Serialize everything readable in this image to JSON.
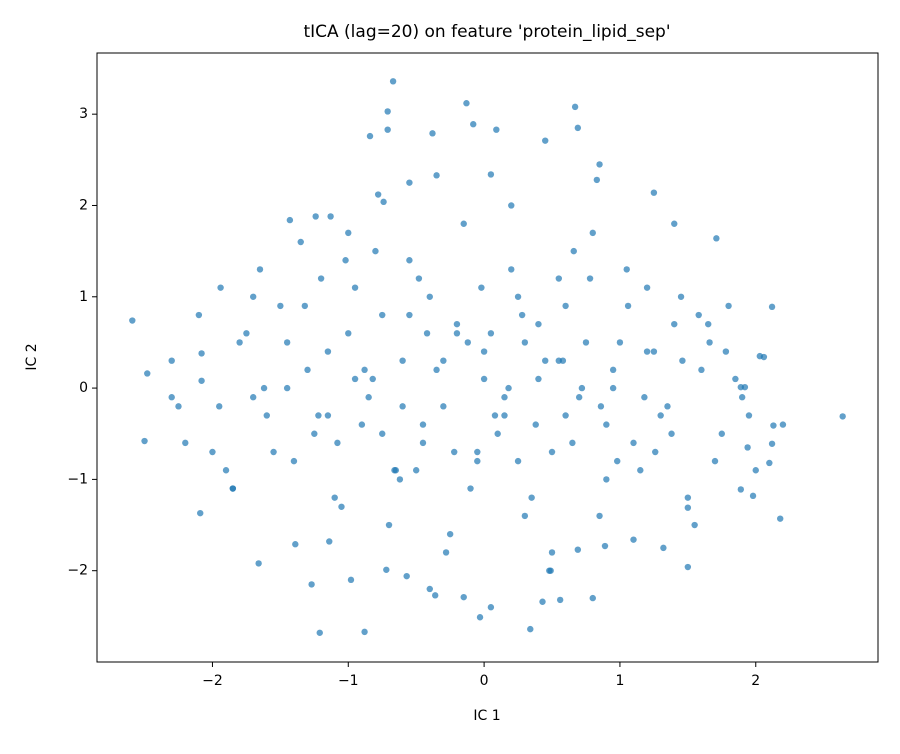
{
  "chart_data": {
    "type": "scatter",
    "title": "tICA (lag=20) on feature 'protein_lipid_sep'",
    "x_label": "IC 1",
    "y_label": "IC 2",
    "xlim": [
      -2.85,
      2.9
    ],
    "ylim": [
      -3.0,
      3.67
    ],
    "xticks": [
      {
        "value": -2,
        "label": "−2"
      },
      {
        "value": -1,
        "label": "−1"
      },
      0,
      1,
      2
    ],
    "yticks": [
      {
        "value": -2,
        "label": "−2"
      },
      {
        "value": -1,
        "label": "−1"
      },
      0,
      1,
      2,
      3
    ],
    "grid": false,
    "series": [
      {
        "color": "#1f77b4",
        "x": [
          -2.59,
          -2.5,
          2.64,
          2.18,
          2.12,
          -0.67,
          -0.13,
          0.67,
          0.69,
          0.45,
          -0.08,
          0.09,
          -0.71,
          -0.84,
          -0.71,
          -0.38,
          0.85,
          -1.21,
          -0.88,
          0.34,
          -0.03,
          0.05,
          -0.15,
          0.43,
          0.56,
          -0.36,
          -1.27,
          -0.98,
          -1.66,
          1.5,
          1.71,
          1.25,
          0.83,
          0.05,
          -0.35,
          -0.55,
          -0.78,
          -0.74,
          -1.24,
          -1.13,
          -1.43,
          -1.94,
          -2.48,
          -2.08,
          -2.08,
          2.03,
          2.06,
          1.92,
          1.89,
          2.13,
          2.12,
          1.94,
          2.1,
          1.89,
          1.98,
          1.5,
          -2.09,
          -1.85,
          -1.39,
          -1.14,
          -0.57,
          -0.72,
          0.49,
          0.5,
          1.32,
          1.1,
          0.89,
          0.69,
          -1.8,
          -1.6,
          -1.5,
          -1.4,
          -1.3,
          -1.2,
          -1.1,
          -1.0,
          -0.9,
          -0.8,
          -0.7,
          -0.6,
          -0.5,
          -0.4,
          -0.3,
          -0.2,
          -0.1,
          0.0,
          0.1,
          0.2,
          0.3,
          0.4,
          0.5,
          0.6,
          0.7,
          0.8,
          0.9,
          1.0,
          1.1,
          1.2,
          1.3,
          1.4,
          1.5,
          1.6,
          1.7,
          1.8,
          -2.3,
          -2.2,
          -2.1,
          -1.95,
          -1.85,
          -1.75,
          -1.65,
          -1.55,
          -1.45,
          -1.35,
          -1.25,
          -1.15,
          -1.05,
          -0.95,
          -0.85,
          -0.75,
          -0.65,
          -0.55,
          -0.45,
          -0.35,
          -0.25,
          -0.15,
          -0.05,
          0.05,
          0.15,
          0.25,
          0.35,
          0.45,
          0.55,
          0.65,
          0.75,
          0.85,
          0.95,
          1.05,
          1.15,
          1.25,
          1.35,
          1.45,
          1.55,
          1.65,
          1.75,
          1.85,
          1.95,
          -2.25,
          -1.9,
          -1.7,
          -1.45,
          -1.22,
          -1.02,
          -0.82,
          -0.62,
          -0.42,
          -0.22,
          -0.02,
          0.18,
          0.38,
          0.58,
          0.78,
          0.98,
          1.18,
          1.38,
          1.58,
          1.78,
          2.0,
          -1.62,
          -1.32,
          -1.08,
          -0.88,
          -0.66,
          -0.48,
          -0.28,
          -0.12,
          0.08,
          0.28,
          0.48,
          0.66,
          0.86,
          1.06,
          1.26,
          1.46,
          1.66,
          -0.95,
          -0.6,
          -0.3,
          0.0,
          0.3,
          0.6,
          0.95,
          -0.45,
          0.15,
          0.72,
          -0.2,
          0.4,
          -0.75,
          0.9,
          1.2,
          -1.15,
          0.55,
          -0.05,
          0.25,
          -0.55,
          -2.0,
          -1.7,
          -1.0,
          -0.4,
          0.2,
          0.8,
          1.4,
          1.9,
          -2.3,
          2.2
        ],
        "values": [
          0.74,
          -0.58,
          -0.31,
          -1.43,
          0.89,
          3.36,
          3.12,
          3.08,
          2.85,
          2.71,
          2.89,
          2.83,
          3.03,
          2.76,
          2.83,
          2.79,
          2.45,
          -2.68,
          -2.67,
          -2.64,
          -2.51,
          -2.4,
          -2.29,
          -2.34,
          -2.32,
          -2.27,
          -2.15,
          -2.1,
          -1.92,
          -1.96,
          1.64,
          2.14,
          2.28,
          2.34,
          2.33,
          2.25,
          2.12,
          2.04,
          1.88,
          1.88,
          1.84,
          1.1,
          0.16,
          0.38,
          0.08,
          0.35,
          0.34,
          0.01,
          0.01,
          -0.41,
          -0.61,
          -0.65,
          -0.82,
          -1.11,
          -1.18,
          -1.31,
          -1.37,
          -1.1,
          -1.71,
          -1.68,
          -2.06,
          -1.99,
          -2.0,
          -1.8,
          -1.75,
          -1.66,
          -1.73,
          -1.77,
          0.5,
          -0.3,
          0.9,
          -0.8,
          0.2,
          1.2,
          -1.2,
          0.6,
          -0.4,
          1.5,
          -1.5,
          0.3,
          -0.9,
          1.0,
          -0.2,
          0.7,
          -1.1,
          0.4,
          -0.5,
          1.3,
          -1.4,
          0.1,
          -0.7,
          0.9,
          -0.1,
          1.7,
          -1.0,
          0.5,
          -0.6,
          1.1,
          -0.3,
          0.7,
          -1.2,
          0.2,
          -0.8,
          0.9,
          0.3,
          -0.6,
          0.8,
          -0.2,
          -1.1,
          0.6,
          1.3,
          -0.7,
          0.0,
          1.6,
          -0.5,
          0.4,
          -1.3,
          1.1,
          -0.1,
          0.8,
          -0.9,
          1.4,
          -0.4,
          0.2,
          -1.6,
          1.8,
          -0.8,
          0.6,
          -0.3,
          1.0,
          -1.2,
          0.3,
          1.2,
          -0.6,
          0.5,
          -1.4,
          0.0,
          1.3,
          -0.9,
          0.4,
          -0.2,
          1.0,
          -1.5,
          0.7,
          -0.5,
          0.1,
          -0.3,
          -0.2,
          -0.9,
          1.0,
          0.5,
          -0.3,
          1.4,
          0.1,
          -1.0,
          0.6,
          -0.7,
          1.1,
          0.0,
          -0.4,
          0.3,
          1.2,
          -0.8,
          -0.1,
          -0.5,
          0.8,
          0.4,
          -0.9,
          0.0,
          0.9,
          -0.6,
          0.2,
          -0.9,
          1.2,
          -1.8,
          0.5,
          -0.3,
          0.8,
          -2.0,
          1.5,
          -0.2,
          0.9,
          -0.7,
          0.3,
          0.5,
          0.1,
          -0.2,
          0.3,
          0.1,
          0.5,
          -0.3,
          0.2,
          -0.6,
          -0.1,
          0.0,
          0.6,
          0.7,
          -0.5,
          -0.4,
          0.4,
          -0.3,
          0.3,
          -0.7,
          -0.8,
          0.8,
          -0.7,
          -0.1,
          1.7,
          -2.2,
          2.0,
          -2.3,
          1.8,
          -0.1,
          -0.1,
          -0.4
        ]
      }
    ]
  }
}
